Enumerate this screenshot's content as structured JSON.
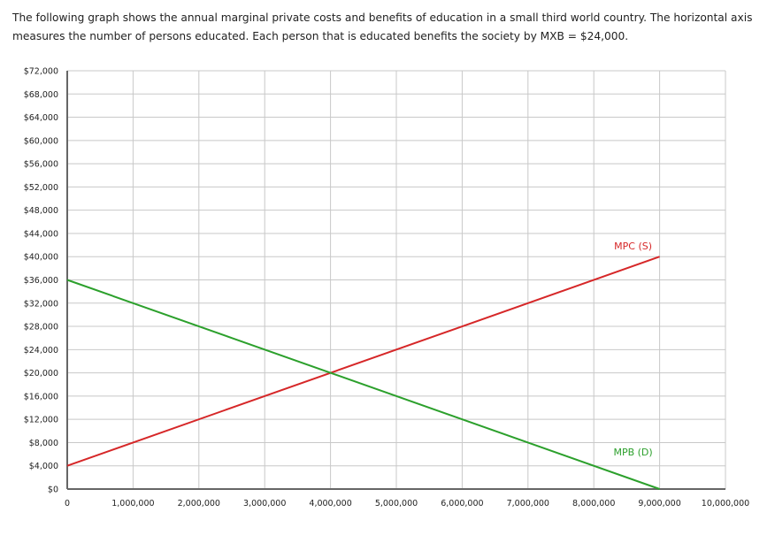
{
  "intro_text": "The following graph shows the annual marginal private costs and benefits of education in a small third world country.  The horizontal axis measures the number of persons educated. Each person that is educated benefits the society by MXB = $24,000.",
  "chart_data": {
    "type": "line",
    "title": "",
    "xlabel": "",
    "ylabel": "",
    "xlim": [
      0,
      10000000
    ],
    "ylim": [
      0,
      72000
    ],
    "grid": true,
    "x_ticks": [
      0,
      1000000,
      2000000,
      3000000,
      4000000,
      5000000,
      6000000,
      7000000,
      8000000,
      9000000,
      10000000
    ],
    "x_tick_labels": [
      "0",
      "1,000,000",
      "2,000,000",
      "3,000,000",
      "4,000,000",
      "5,000,000",
      "6,000,000",
      "7,000,000",
      "8,000,000",
      "9,000,000",
      "10,000,000"
    ],
    "y_ticks": [
      0,
      4000,
      8000,
      12000,
      16000,
      20000,
      24000,
      28000,
      32000,
      36000,
      40000,
      44000,
      48000,
      52000,
      56000,
      60000,
      64000,
      68000,
      72000
    ],
    "y_tick_labels": [
      "$0",
      "$4,000",
      "$8,000",
      "$12,000",
      "$16,000",
      "$20,000",
      "$24,000",
      "$28,000",
      "$32,000",
      "$36,000",
      "$40,000",
      "$44,000",
      "$48,000",
      "$52,000",
      "$56,000",
      "$60,000",
      "$64,000",
      "$68,000",
      "$72,000"
    ],
    "series": [
      {
        "name": "MPC (S)",
        "color": "#d62728",
        "x": [
          0,
          9000000
        ],
        "y": [
          4000,
          40000
        ]
      },
      {
        "name": "MPB (D)",
        "color": "#2ca02c",
        "x": [
          0,
          9000000
        ],
        "y": [
          36000,
          0
        ]
      }
    ]
  }
}
